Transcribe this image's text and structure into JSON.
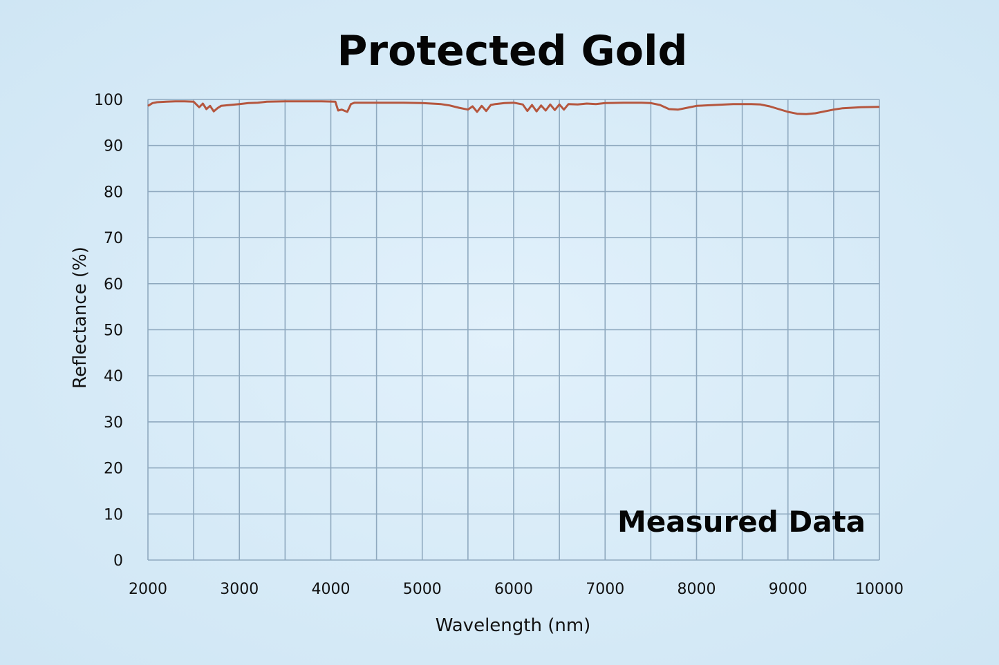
{
  "chart_data": {
    "type": "line",
    "title": "Protected Gold",
    "xlabel": "Wavelength (nm)",
    "ylabel": "Reflectance (%)",
    "xlim": [
      2000,
      10000
    ],
    "ylim": [
      0,
      100
    ],
    "xticks": [
      2000,
      3000,
      4000,
      5000,
      6000,
      7000,
      8000,
      9000,
      10000
    ],
    "yticks": [
      0,
      10,
      20,
      30,
      40,
      50,
      60,
      70,
      80,
      90,
      100
    ],
    "grid": true,
    "annotation": "Measured Data",
    "series": [
      {
        "color": "#b5563e",
        "x": [
          2000,
          2050,
          2100,
          2200,
          2300,
          2400,
          2500,
          2560,
          2600,
          2640,
          2680,
          2720,
          2760,
          2800,
          2900,
          3000,
          3100,
          3200,
          3300,
          3500,
          3700,
          3900,
          4050,
          4080,
          4120,
          4180,
          4220,
          4260,
          4400,
          4600,
          4800,
          5000,
          5200,
          5300,
          5400,
          5500,
          5550,
          5600,
          5650,
          5700,
          5750,
          5800,
          5900,
          6000,
          6100,
          6150,
          6200,
          6250,
          6300,
          6350,
          6400,
          6450,
          6500,
          6550,
          6600,
          6700,
          6800,
          6900,
          7000,
          7200,
          7400,
          7500,
          7600,
          7700,
          7800,
          7900,
          8000,
          8200,
          8400,
          8600,
          8700,
          8800,
          8900,
          9000,
          9100,
          9200,
          9300,
          9400,
          9500,
          9600,
          9800,
          10000
        ],
        "y": [
          98.6,
          99.2,
          99.4,
          99.5,
          99.6,
          99.6,
          99.5,
          98.3,
          99.1,
          97.9,
          98.6,
          97.4,
          98.1,
          98.6,
          98.8,
          99.0,
          99.2,
          99.3,
          99.5,
          99.6,
          99.6,
          99.6,
          99.5,
          97.6,
          97.8,
          97.3,
          99.0,
          99.3,
          99.3,
          99.3,
          99.3,
          99.2,
          99.0,
          98.7,
          98.2,
          97.8,
          98.5,
          97.3,
          98.6,
          97.5,
          98.8,
          99.0,
          99.2,
          99.3,
          98.9,
          97.5,
          98.8,
          97.4,
          98.7,
          97.6,
          98.9,
          97.7,
          98.9,
          97.8,
          99.0,
          98.9,
          99.1,
          99.0,
          99.2,
          99.3,
          99.3,
          99.2,
          98.8,
          97.9,
          97.8,
          98.2,
          98.6,
          98.8,
          99.0,
          99.0,
          98.9,
          98.5,
          97.9,
          97.3,
          96.9,
          96.8,
          97.0,
          97.4,
          97.8,
          98.1,
          98.3,
          98.4
        ]
      }
    ]
  }
}
